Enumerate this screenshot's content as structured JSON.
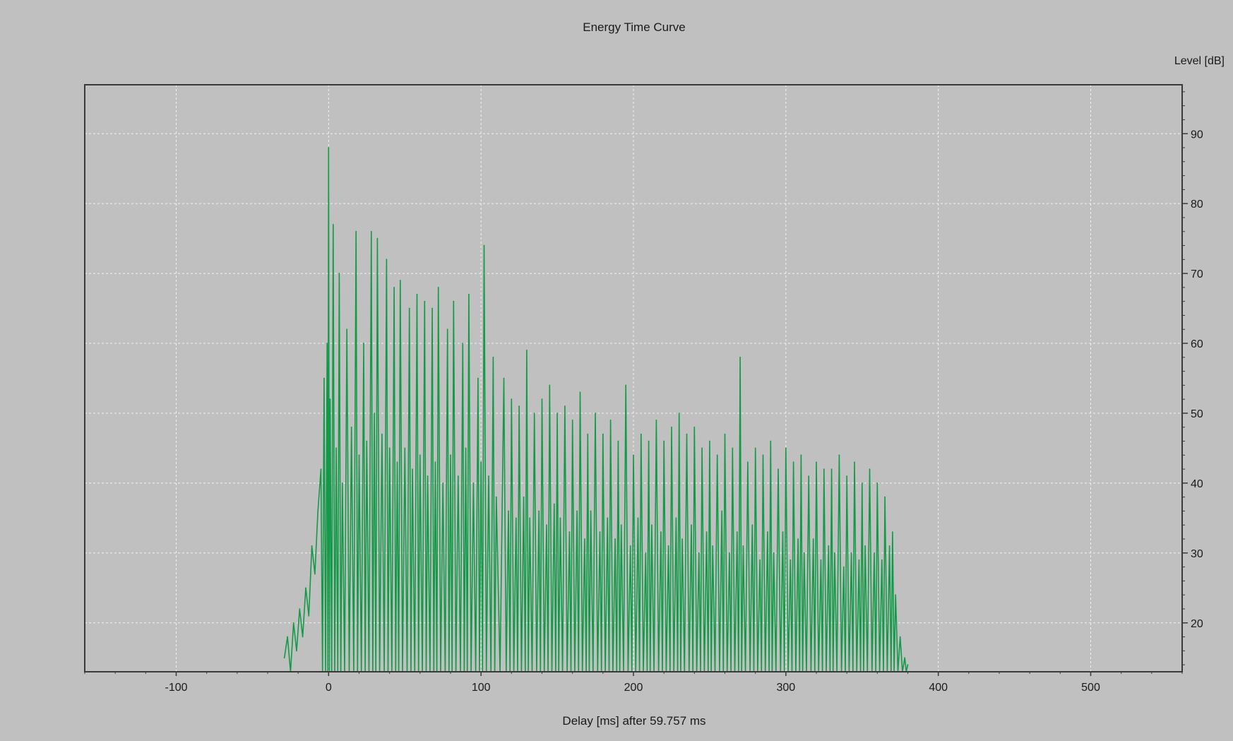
{
  "chart_data": {
    "type": "line",
    "title": "Energy Time Curve",
    "xlabel": "Delay [ms] after  59.757 ms",
    "ylabel": "Level [dB]",
    "xlim": [
      -160,
      560
    ],
    "ylim": [
      13,
      97
    ],
    "x_ticks": [
      -100,
      0,
      100,
      200,
      300,
      400,
      500
    ],
    "y_ticks": [
      20,
      30,
      40,
      50,
      60,
      70,
      80,
      90
    ],
    "grid": true,
    "series_color": "#139a48",
    "grid_color": "#f2f2f2",
    "background_color": "#c0c0c0",
    "series": [
      {
        "x": [
          -29,
          -27,
          -25,
          -23,
          -21,
          -19,
          -17,
          -15,
          -13,
          -11,
          -9,
          -7,
          -5,
          -3,
          -1,
          0,
          1,
          3,
          5,
          7,
          9,
          12,
          15,
          18,
          20,
          23,
          25,
          28,
          30,
          32,
          35,
          38,
          40,
          43,
          45,
          47,
          50,
          53,
          55,
          58,
          60,
          63,
          65,
          68,
          70,
          72,
          75,
          78,
          80,
          82,
          85,
          88,
          90,
          92,
          95,
          98,
          100,
          102,
          105,
          108,
          110,
          115,
          118,
          120,
          123,
          125,
          128,
          130,
          132,
          135,
          138,
          140,
          143,
          145,
          148,
          150,
          152,
          155,
          158,
          160,
          163,
          165,
          168,
          170,
          172,
          175,
          178,
          180,
          183,
          185,
          188,
          190,
          192,
          195,
          198,
          200,
          203,
          205,
          208,
          210,
          212,
          215,
          218,
          220,
          223,
          225,
          228,
          230,
          232,
          235,
          238,
          240,
          243,
          245,
          248,
          250,
          252,
          255,
          258,
          260,
          263,
          265,
          268,
          270,
          272,
          275,
          278,
          280,
          283,
          285,
          288,
          290,
          292,
          295,
          298,
          300,
          303,
          305,
          308,
          310,
          312,
          315,
          318,
          320,
          323,
          325,
          328,
          330,
          332,
          335,
          338,
          340,
          343,
          345,
          348,
          350,
          352,
          355,
          358,
          360,
          363,
          365,
          368,
          370,
          372,
          375,
          378,
          380
        ],
        "y": [
          15,
          18,
          13,
          20,
          16,
          22,
          18,
          25,
          21,
          31,
          27,
          36,
          42,
          55,
          60,
          88,
          52,
          77,
          45,
          70,
          40,
          62,
          48,
          76,
          44,
          60,
          46,
          76,
          50,
          75,
          47,
          72,
          45,
          68,
          43,
          69,
          45,
          65,
          42,
          67,
          44,
          66,
          41,
          65,
          43,
          68,
          40,
          62,
          44,
          66,
          41,
          60,
          45,
          67,
          40,
          55,
          43,
          74,
          41,
          58,
          38,
          55,
          36,
          52,
          35,
          51,
          38,
          59,
          35,
          50,
          36,
          52,
          34,
          54,
          37,
          50,
          35,
          51,
          33,
          49,
          36,
          53,
          32,
          47,
          36,
          50,
          33,
          47,
          35,
          49,
          32,
          46,
          34,
          54,
          31,
          44,
          35,
          47,
          30,
          46,
          34,
          49,
          33,
          46,
          31,
          48,
          35,
          50,
          32,
          47,
          34,
          48,
          30,
          45,
          33,
          46,
          31,
          44,
          36,
          47,
          30,
          45,
          33,
          58,
          31,
          43,
          34,
          45,
          29,
          44,
          33,
          46,
          30,
          42,
          33,
          45,
          29,
          43,
          32,
          44,
          30,
          41,
          32,
          43,
          29,
          42,
          31,
          42,
          30,
          44,
          28,
          41,
          30,
          43,
          29,
          40,
          31,
          42,
          30,
          40,
          29,
          38,
          31,
          33,
          24,
          18,
          15,
          14
        ]
      }
    ]
  }
}
